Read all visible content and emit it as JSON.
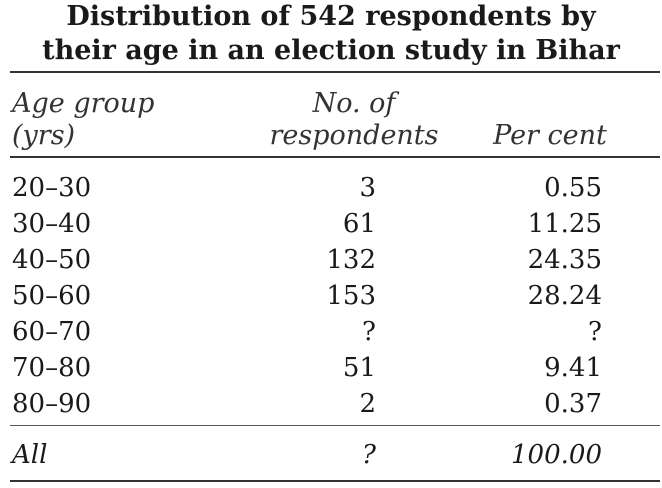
{
  "table": {
    "title_line1": "Distribution of 542 respondents by",
    "title_line2": "their age in an election study in Bihar",
    "headers": {
      "age_line1": "Age group",
      "age_line2": "(yrs)",
      "num_line1": "No. of",
      "num_line2": "respondents",
      "pct": "Per cent"
    },
    "rows": [
      {
        "age": "20–30",
        "num": "3",
        "pct": "0.55"
      },
      {
        "age": "30–40",
        "num": "61",
        "pct": "11.25"
      },
      {
        "age": "40–50",
        "num": "132",
        "pct": "24.35"
      },
      {
        "age": "50–60",
        "num": "153",
        "pct": "28.24"
      },
      {
        "age": "60–70",
        "num": "?",
        "pct": "?"
      },
      {
        "age": "70–80",
        "num": "51",
        "pct": "9.41"
      },
      {
        "age": "80–90",
        "num": "2",
        "pct": "0.37"
      }
    ],
    "total": {
      "age": "All",
      "num": "?",
      "pct": "100.00"
    }
  }
}
